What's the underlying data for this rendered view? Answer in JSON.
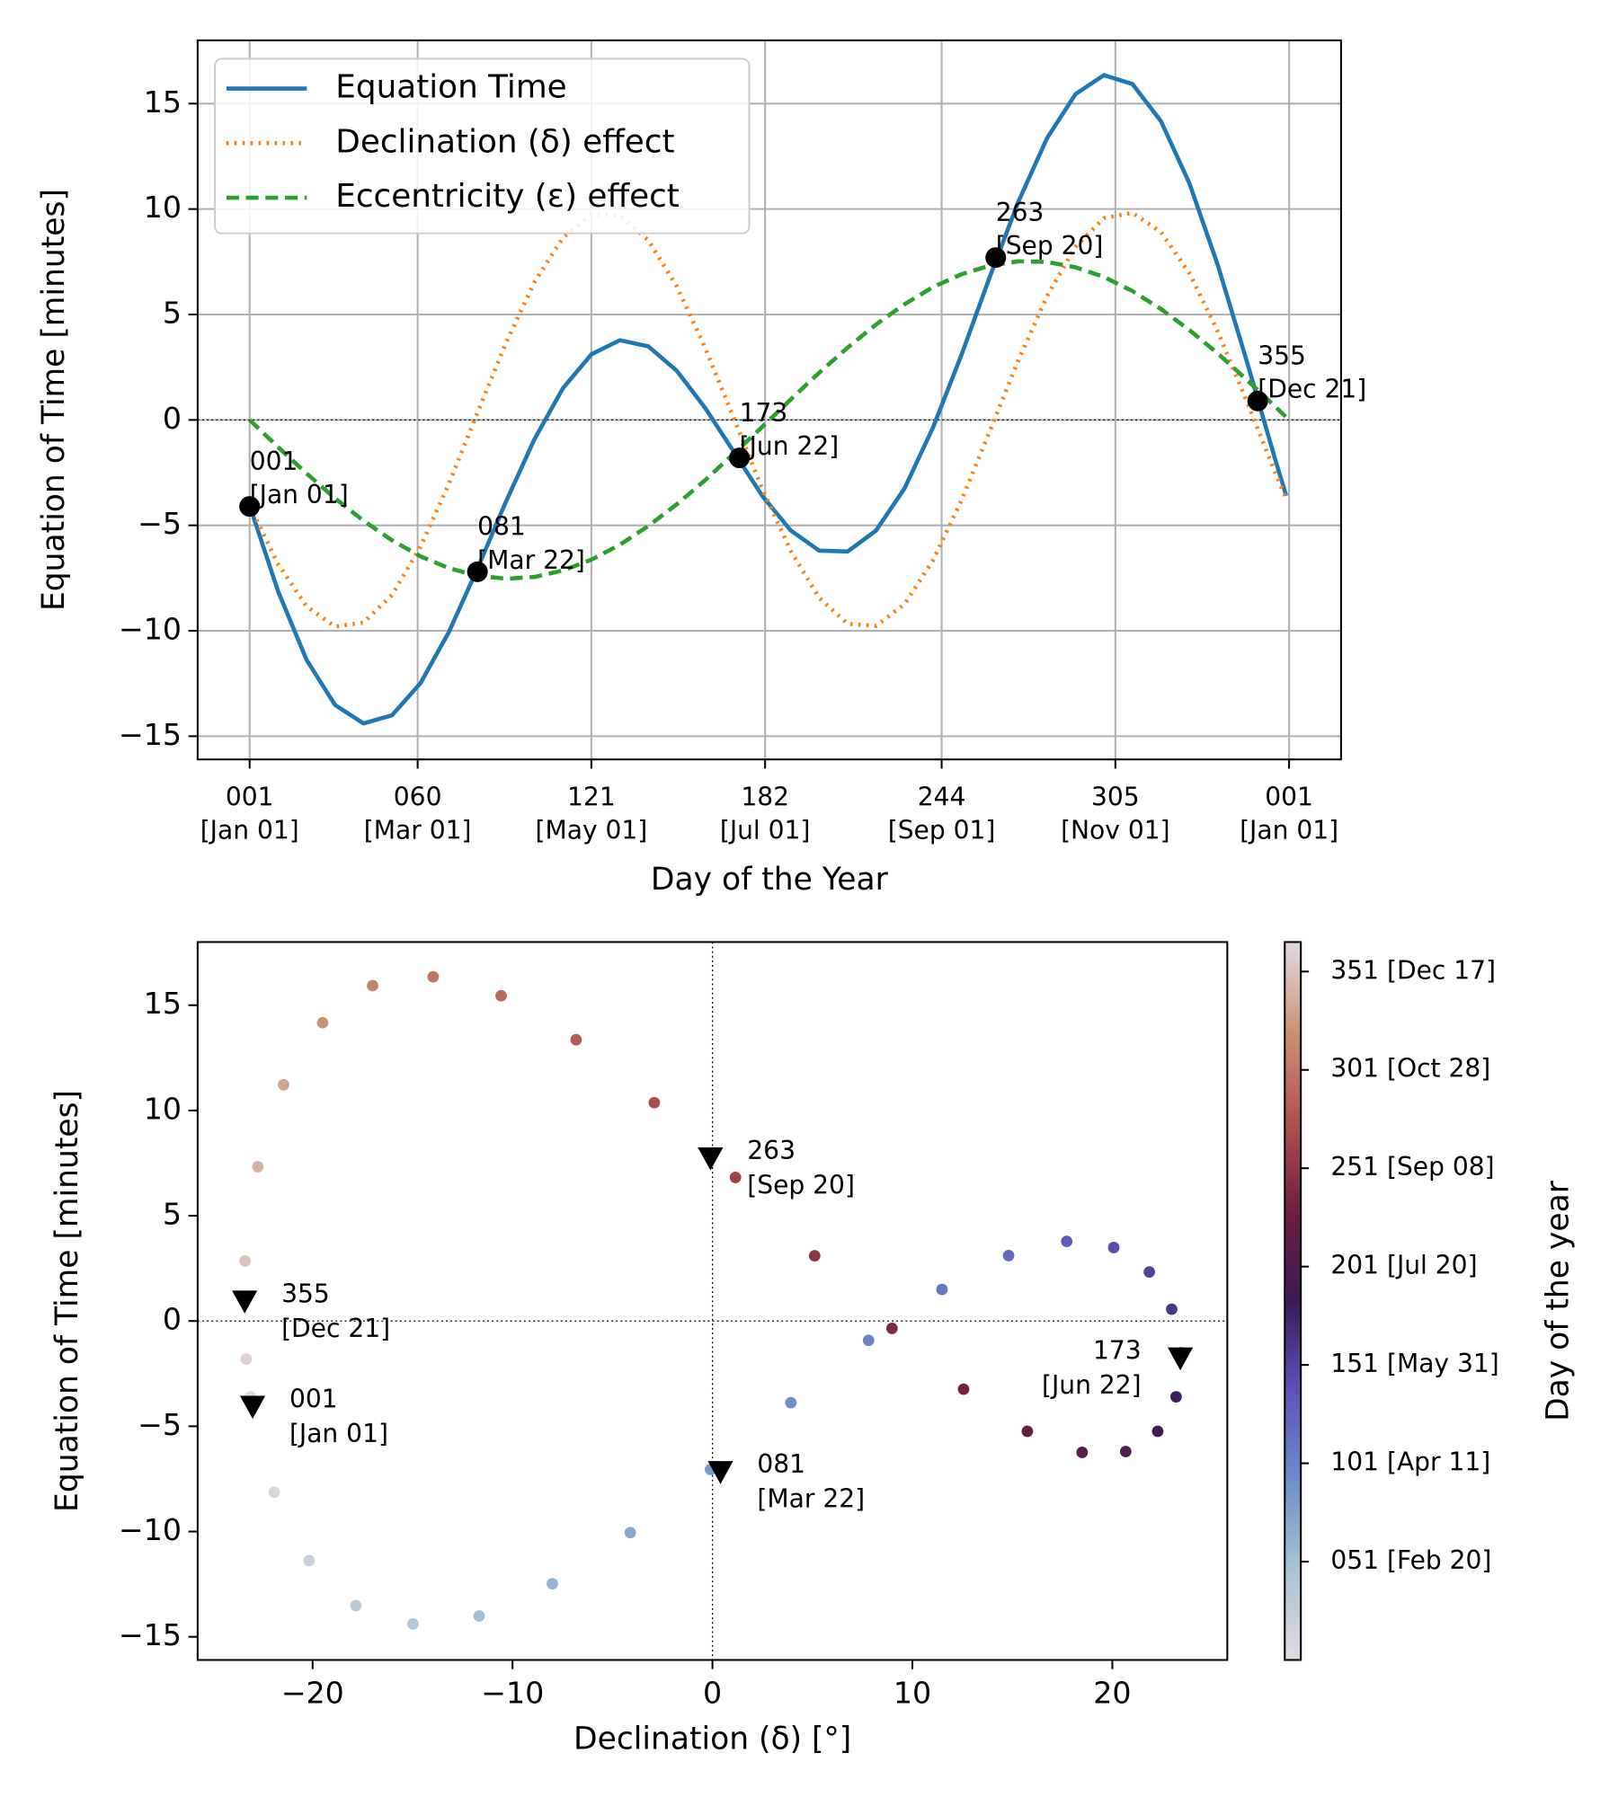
{
  "chart_data": [
    {
      "type": "line",
      "xlabel": "Day of the Year",
      "ylabel": "Equation of Time [minutes]",
      "x": [
        1,
        11,
        21,
        31,
        41,
        51,
        61,
        71,
        81,
        91,
        101,
        111,
        121,
        131,
        141,
        151,
        161,
        171,
        181,
        191,
        201,
        211,
        221,
        231,
        241,
        251,
        261,
        271,
        281,
        291,
        301,
        311,
        321,
        331,
        341,
        351,
        361,
        365
      ],
      "series": [
        {
          "name": "Equation Time",
          "color": "#1f77b4",
          "linestyle": "solid",
          "values": [
            -4.05,
            -8.13,
            -11.38,
            -13.52,
            -14.39,
            -14.01,
            -12.48,
            -10.05,
            -7.05,
            -3.88,
            -0.92,
            1.5,
            3.11,
            3.78,
            3.49,
            2.33,
            0.56,
            -1.51,
            -3.6,
            -5.24,
            -6.2,
            -6.24,
            -5.24,
            -3.24,
            -0.35,
            3.1,
            6.82,
            10.37,
            13.36,
            15.45,
            16.35,
            15.93,
            14.17,
            11.22,
            7.33,
            2.85,
            -1.81,
            -3.6
          ]
        },
        {
          "name": "Declination (δ) effect",
          "color": "#ff7f0e",
          "linestyle": "dotted",
          "values": [
            -4.05,
            -6.84,
            -8.84,
            -9.8,
            -9.61,
            -8.3,
            -6.01,
            -3.02,
            0.34,
            3.65,
            6.53,
            8.64,
            9.74,
            9.7,
            8.52,
            6.33,
            3.41,
            0.09,
            -3.27,
            -6.21,
            -8.44,
            -9.67,
            -9.77,
            -8.73,
            -6.65,
            -3.81,
            -0.5,
            2.85,
            5.87,
            8.21,
            9.57,
            9.82,
            8.91,
            6.96,
            4.18,
            0.93,
            -2.46,
            -3.73
          ]
        },
        {
          "name": "Eccentricity (ε) effect",
          "color": "#2ca02c",
          "linestyle": "dashed",
          "values": [
            0,
            -1.29,
            -2.54,
            -3.72,
            -4.78,
            -5.71,
            -6.47,
            -7.03,
            -7.39,
            -7.53,
            -7.45,
            -7.14,
            -6.63,
            -5.92,
            -5.03,
            -4.0,
            -2.85,
            -1.6,
            -0.33,
            0.97,
            2.24,
            3.43,
            4.53,
            5.49,
            6.3,
            6.91,
            7.32,
            7.52,
            7.49,
            7.24,
            6.78,
            6.11,
            5.26,
            4.26,
            3.15,
            1.92,
            0.65,
            0.13
          ]
        }
      ],
      "xlim": [
        -17.25,
        384.25
      ],
      "ylim": [
        -16.1,
        18.0
      ],
      "xticks": [
        {
          "value": 1,
          "label": [
            "001",
            "[Jan 01]"
          ]
        },
        {
          "value": 60,
          "label": [
            "060",
            "[Mar 01]"
          ]
        },
        {
          "value": 121,
          "label": [
            "121",
            "[May 01]"
          ]
        },
        {
          "value": 182,
          "label": [
            "182",
            "[Jul 01]"
          ]
        },
        {
          "value": 244,
          "label": [
            "244",
            "[Sep 01]"
          ]
        },
        {
          "value": 305,
          "label": [
            "305",
            "[Nov 01]"
          ]
        },
        {
          "value": 366,
          "label": [
            "001",
            "[Jan 01]"
          ]
        }
      ],
      "yticks": [
        {
          "value": -15,
          "label": "−15"
        },
        {
          "value": -10,
          "label": "−10"
        },
        {
          "value": -5,
          "label": "−5"
        },
        0,
        5,
        10,
        15
      ],
      "grid": true,
      "legend": "upper left",
      "zero_line": true,
      "marker_color": "#000000",
      "annotations": [
        {
          "x": 1,
          "y": -4.1,
          "label": [
            "001",
            "[Jan 01]"
          ]
        },
        {
          "x": 81,
          "y": -7.2,
          "label": [
            "081",
            "[Mar 22]"
          ]
        },
        {
          "x": 173,
          "y": -1.8,
          "label": [
            "173",
            "[Jun 22]"
          ]
        },
        {
          "x": 263,
          "y": 7.7,
          "label": [
            "263",
            "[Sep 20]"
          ]
        },
        {
          "x": 355,
          "y": 0.9,
          "label": [
            "355",
            "[Dec 21]"
          ]
        }
      ]
    },
    {
      "type": "scatter",
      "xlabel": "Declination (δ) [°]",
      "ylabel": "Equation of Time [minutes]",
      "x": [
        -23.02,
        -21.92,
        -20.18,
        -17.84,
        -14.98,
        -11.67,
        -8.01,
        -4.11,
        -0.1,
        3.92,
        7.81,
        11.48,
        14.81,
        17.72,
        20.07,
        21.85,
        22.97,
        23.43,
        23.19,
        22.27,
        20.67,
        18.49,
        15.75,
        12.56,
        8.98,
        5.11,
        1.15,
        -2.91,
        -6.82,
        -10.57,
        -13.97,
        -17.0,
        -19.5,
        -21.45,
        -22.74,
        -23.38,
        -23.32,
        -23.11
      ],
      "y": [
        -4.05,
        -8.13,
        -11.38,
        -13.52,
        -14.39,
        -14.01,
        -12.48,
        -10.05,
        -7.05,
        -3.88,
        -0.92,
        1.5,
        3.11,
        3.78,
        3.49,
        2.33,
        0.56,
        -1.51,
        -3.6,
        -5.24,
        -6.2,
        -6.24,
        -5.24,
        -3.24,
        -0.35,
        3.1,
        6.82,
        10.37,
        13.36,
        15.45,
        16.35,
        15.93,
        14.17,
        11.22,
        7.33,
        2.85,
        -1.81,
        -3.6
      ],
      "color_values": [
        1,
        11,
        21,
        31,
        41,
        51,
        61,
        71,
        81,
        91,
        101,
        111,
        121,
        131,
        141,
        151,
        161,
        171,
        181,
        191,
        201,
        211,
        221,
        231,
        241,
        251,
        261,
        271,
        281,
        291,
        301,
        311,
        321,
        331,
        341,
        351,
        361,
        365
      ],
      "colormap": [
        "#e2d9e2",
        "#a9c4d3",
        "#6b8fc8",
        "#5e52b8",
        "#3b1a57",
        "#6e1e3f",
        "#b0524f",
        "#cb9274",
        "#e2d9e2"
      ],
      "clim": [
        1,
        366
      ],
      "colorbar_label": "Day of the year",
      "colorbar_ticks": [
        {
          "value": 51,
          "label": "051 [Feb 20]"
        },
        {
          "value": 101,
          "label": "101 [Apr 11]"
        },
        {
          "value": 151,
          "label": "151 [May 31]"
        },
        {
          "value": 201,
          "label": "201 [Jul 20]"
        },
        {
          "value": 251,
          "label": "251 [Sep 08]"
        },
        {
          "value": 301,
          "label": "301 [Oct 28]"
        },
        {
          "value": 351,
          "label": "351 [Dec 17]"
        }
      ],
      "xlim": [
        -25.75,
        25.75
      ],
      "ylim": [
        -16.1,
        18.0
      ],
      "xticks": [
        {
          "value": -20,
          "label": "−20"
        },
        {
          "value": -10,
          "label": "−10"
        },
        0,
        10,
        20
      ],
      "yticks": [
        {
          "value": -15,
          "label": "−15"
        },
        {
          "value": -10,
          "label": "−10"
        },
        {
          "value": -5,
          "label": "−5"
        },
        0,
        5,
        10,
        15
      ],
      "grid": false,
      "zero_lines": true,
      "marker_color": "#000000",
      "annotations": [
        {
          "x": -23.0,
          "y": -4.1,
          "label": [
            "001",
            "[Jan 01]"
          ]
        },
        {
          "x": 0.4,
          "y": -7.2,
          "label": [
            "081",
            "[Mar 22]"
          ]
        },
        {
          "x": 23.4,
          "y": -1.8,
          "label": [
            "173",
            "[Jun 22]"
          ]
        },
        {
          "x": -0.1,
          "y": 7.7,
          "label": [
            "263",
            "[Sep 20]"
          ]
        },
        {
          "x": -23.4,
          "y": 0.9,
          "label": [
            "355",
            "[Dec 21]"
          ]
        }
      ]
    }
  ]
}
